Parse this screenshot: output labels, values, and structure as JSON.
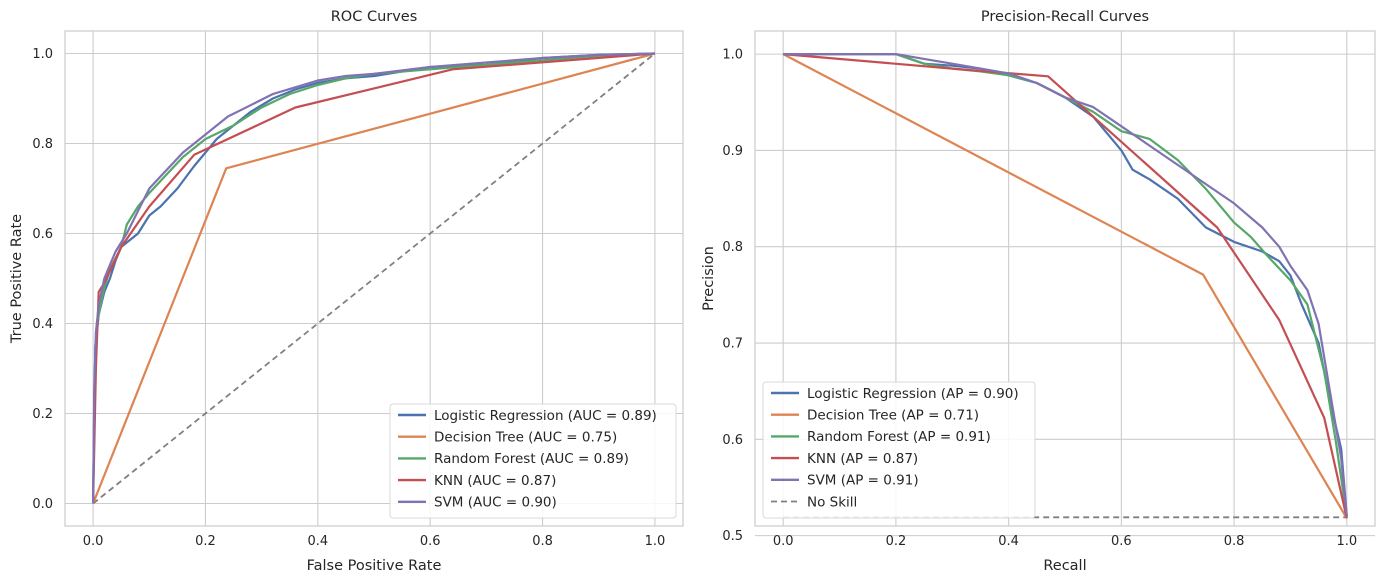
{
  "chart_data": [
    {
      "id": "roc",
      "type": "line",
      "title": "ROC Curves",
      "xlabel": "False Positive Rate",
      "ylabel": "True Positive Rate",
      "xlim": [
        -0.05,
        1.05
      ],
      "ylim": [
        -0.05,
        1.05
      ],
      "xticks": [
        "0.0",
        "0.2",
        "0.4",
        "0.6",
        "0.8",
        "1.0"
      ],
      "yticks": [
        "0.0",
        "0.2",
        "0.4",
        "0.6",
        "0.8",
        "1.0"
      ],
      "grid": true,
      "legend_position": "lower-right",
      "series": [
        {
          "name": "Logistic Regression (AUC = 0.89)",
          "color": "#4c72b0",
          "points": [
            [
              0,
              0
            ],
            [
              0.002,
              0.2
            ],
            [
              0.004,
              0.35
            ],
            [
              0.01,
              0.42
            ],
            [
              0.02,
              0.47
            ],
            [
              0.03,
              0.5
            ],
            [
              0.04,
              0.54
            ],
            [
              0.05,
              0.57
            ],
            [
              0.06,
              0.58
            ],
            [
              0.08,
              0.6
            ],
            [
              0.1,
              0.64
            ],
            [
              0.12,
              0.66
            ],
            [
              0.15,
              0.7
            ],
            [
              0.18,
              0.75
            ],
            [
              0.2,
              0.78
            ],
            [
              0.22,
              0.81
            ],
            [
              0.25,
              0.84
            ],
            [
              0.28,
              0.87
            ],
            [
              0.32,
              0.9
            ],
            [
              0.36,
              0.92
            ],
            [
              0.4,
              0.935
            ],
            [
              0.45,
              0.945
            ],
            [
              0.5,
              0.95
            ],
            [
              0.6,
              0.97
            ],
            [
              0.7,
              0.975
            ],
            [
              0.8,
              0.99
            ],
            [
              0.9,
              0.997
            ],
            [
              1.0,
              1.0
            ]
          ]
        },
        {
          "name": "Decision Tree (AUC = 0.75)",
          "color": "#dd8452",
          "points": [
            [
              0,
              0
            ],
            [
              0.237,
              0.745
            ],
            [
              1.0,
              1.0
            ]
          ]
        },
        {
          "name": "Random Forest (AUC = 0.89)",
          "color": "#55a868",
          "points": [
            [
              0,
              0
            ],
            [
              0.002,
              0.22
            ],
            [
              0.005,
              0.36
            ],
            [
              0.01,
              0.42
            ],
            [
              0.02,
              0.48
            ],
            [
              0.03,
              0.52
            ],
            [
              0.05,
              0.57
            ],
            [
              0.06,
              0.62
            ],
            [
              0.08,
              0.66
            ],
            [
              0.1,
              0.69
            ],
            [
              0.13,
              0.73
            ],
            [
              0.16,
              0.77
            ],
            [
              0.2,
              0.81
            ],
            [
              0.25,
              0.84
            ],
            [
              0.3,
              0.88
            ],
            [
              0.35,
              0.91
            ],
            [
              0.4,
              0.93
            ],
            [
              0.45,
              0.945
            ],
            [
              0.5,
              0.955
            ],
            [
              0.6,
              0.965
            ],
            [
              0.7,
              0.975
            ],
            [
              0.8,
              0.985
            ],
            [
              0.9,
              0.995
            ],
            [
              1.0,
              1.0
            ]
          ]
        },
        {
          "name": "KNN (AUC = 0.87)",
          "color": "#c44e52",
          "points": [
            [
              0,
              0
            ],
            [
              0.005,
              0.3
            ],
            [
              0.01,
              0.47
            ],
            [
              0.02,
              0.49
            ],
            [
              0.05,
              0.57
            ],
            [
              0.1,
              0.66
            ],
            [
              0.18,
              0.775
            ],
            [
              0.36,
              0.88
            ],
            [
              0.64,
              0.965
            ],
            [
              1.0,
              1.0
            ]
          ]
        },
        {
          "name": "SVM (AUC = 0.90)",
          "color": "#8172b3",
          "points": [
            [
              0,
              0
            ],
            [
              0.002,
              0.25
            ],
            [
              0.005,
              0.38
            ],
            [
              0.01,
              0.44
            ],
            [
              0.02,
              0.5
            ],
            [
              0.03,
              0.53
            ],
            [
              0.04,
              0.56
            ],
            [
              0.06,
              0.6
            ],
            [
              0.08,
              0.65
            ],
            [
              0.1,
              0.7
            ],
            [
              0.13,
              0.74
            ],
            [
              0.16,
              0.78
            ],
            [
              0.2,
              0.82
            ],
            [
              0.24,
              0.86
            ],
            [
              0.28,
              0.885
            ],
            [
              0.32,
              0.91
            ],
            [
              0.36,
              0.925
            ],
            [
              0.4,
              0.94
            ],
            [
              0.45,
              0.95
            ],
            [
              0.5,
              0.955
            ],
            [
              0.6,
              0.97
            ],
            [
              0.7,
              0.98
            ],
            [
              0.8,
              0.99
            ],
            [
              0.9,
              0.997
            ],
            [
              1.0,
              1.0
            ]
          ]
        }
      ],
      "reference_line": {
        "points": [
          [
            0,
            0
          ],
          [
            1,
            1
          ]
        ],
        "color": "#808080",
        "style": "dashed"
      }
    },
    {
      "id": "pr",
      "type": "line",
      "title": "Precision-Recall Curves",
      "xlabel": "Recall",
      "ylabel": "Precision",
      "xlim": [
        -0.05,
        1.05
      ],
      "ylim": [
        0.51,
        1.024
      ],
      "xticks": [
        "0.0",
        "0.2",
        "0.4",
        "0.6",
        "0.8",
        "1.0"
      ],
      "yticks": [
        "0.5",
        "0.6",
        "0.7",
        "0.8",
        "0.9",
        "1.0"
      ],
      "grid": true,
      "legend_position": "lower-left",
      "series": [
        {
          "name": "Logistic Regression (AP = 0.90)",
          "color": "#4c72b0",
          "points": [
            [
              0,
              1.0
            ],
            [
              0.2,
              1.0
            ],
            [
              0.25,
              0.99
            ],
            [
              0.3,
              0.988
            ],
            [
              0.35,
              0.985
            ],
            [
              0.4,
              0.978
            ],
            [
              0.45,
              0.97
            ],
            [
              0.5,
              0.955
            ],
            [
              0.55,
              0.935
            ],
            [
              0.6,
              0.9
            ],
            [
              0.62,
              0.88
            ],
            [
              0.65,
              0.87
            ],
            [
              0.7,
              0.85
            ],
            [
              0.75,
              0.82
            ],
            [
              0.8,
              0.805
            ],
            [
              0.85,
              0.795
            ],
            [
              0.88,
              0.785
            ],
            [
              0.9,
              0.77
            ],
            [
              0.92,
              0.74
            ],
            [
              0.95,
              0.7
            ],
            [
              0.97,
              0.64
            ],
            [
              0.99,
              0.59
            ],
            [
              1.0,
              0.52
            ]
          ]
        },
        {
          "name": "Decision Tree (AP = 0.71)",
          "color": "#dd8452",
          "points": [
            [
              0,
              1.0
            ],
            [
              0.745,
              0.771
            ],
            [
              1.0,
              0.518
            ]
          ]
        },
        {
          "name": "Random Forest (AP = 0.91)",
          "color": "#55a868",
          "points": [
            [
              0,
              1.0
            ],
            [
              0.2,
              1.0
            ],
            [
              0.25,
              0.99
            ],
            [
              0.3,
              0.985
            ],
            [
              0.35,
              0.982
            ],
            [
              0.4,
              0.978
            ],
            [
              0.45,
              0.97
            ],
            [
              0.5,
              0.955
            ],
            [
              0.55,
              0.94
            ],
            [
              0.6,
              0.92
            ],
            [
              0.65,
              0.912
            ],
            [
              0.7,
              0.89
            ],
            [
              0.75,
              0.86
            ],
            [
              0.8,
              0.825
            ],
            [
              0.83,
              0.81
            ],
            [
              0.86,
              0.79
            ],
            [
              0.9,
              0.765
            ],
            [
              0.93,
              0.74
            ],
            [
              0.96,
              0.67
            ],
            [
              0.98,
              0.6
            ],
            [
              1.0,
              0.52
            ]
          ]
        },
        {
          "name": "KNN (AP = 0.87)",
          "color": "#c44e52",
          "points": [
            [
              0,
              1.0
            ],
            [
              0.3,
              0.985
            ],
            [
              0.47,
              0.977
            ],
            [
              0.77,
              0.82
            ],
            [
              0.88,
              0.724
            ],
            [
              0.96,
              0.622
            ],
            [
              1.0,
              0.518
            ]
          ]
        },
        {
          "name": "SVM (AP = 0.91)",
          "color": "#8172b3",
          "points": [
            [
              0,
              1.0
            ],
            [
              0.2,
              1.0
            ],
            [
              0.25,
              0.995
            ],
            [
              0.3,
              0.99
            ],
            [
              0.35,
              0.985
            ],
            [
              0.4,
              0.98
            ],
            [
              0.45,
              0.97
            ],
            [
              0.5,
              0.955
            ],
            [
              0.55,
              0.945
            ],
            [
              0.6,
              0.925
            ],
            [
              0.65,
              0.905
            ],
            [
              0.7,
              0.885
            ],
            [
              0.75,
              0.865
            ],
            [
              0.8,
              0.845
            ],
            [
              0.85,
              0.82
            ],
            [
              0.88,
              0.8
            ],
            [
              0.9,
              0.78
            ],
            [
              0.93,
              0.755
            ],
            [
              0.95,
              0.72
            ],
            [
              0.97,
              0.65
            ],
            [
              0.99,
              0.58
            ],
            [
              1.0,
              0.52
            ]
          ]
        }
      ],
      "reference_line": {
        "name": "No Skill",
        "points": [
          [
            0,
            0.519
          ],
          [
            1,
            0.519
          ]
        ],
        "color": "#808080",
        "style": "dashed"
      }
    }
  ]
}
